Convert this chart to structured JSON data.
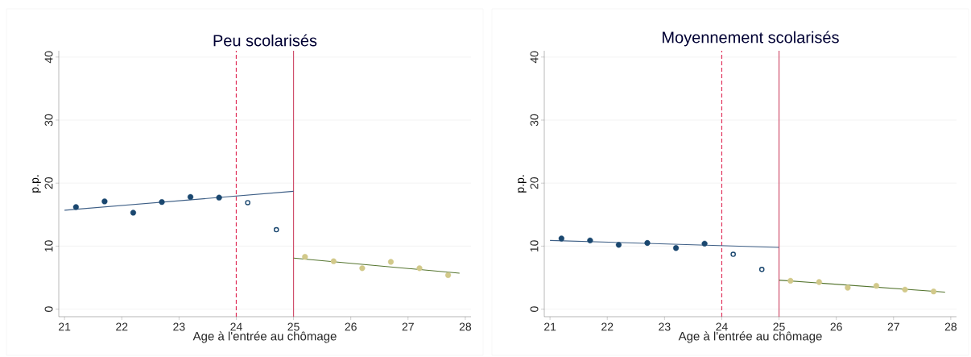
{
  "chart_data": [
    {
      "type": "scatter",
      "marker": "circle",
      "title": "Peu scolarisés",
      "xlabel": "Age à l'entrée au chômage",
      "ylabel": "p.p.",
      "xlim": [
        20.9,
        28.1
      ],
      "ylim": [
        -1.2,
        41
      ],
      "xticks": [
        21,
        22,
        23,
        24,
        25,
        26,
        27,
        28
      ],
      "yticks": [
        0,
        10,
        20,
        30,
        40
      ],
      "grid": "y",
      "series": [
        {
          "color": "#1a476f",
          "x": [
            21.2,
            21.7,
            22.2,
            22.7,
            23.2,
            23.7
          ],
          "values": [
            16.2,
            17.1,
            15.3,
            17.0,
            17.8,
            17.7
          ]
        },
        {
          "color": "#1a476f",
          "x": [
            24.2,
            24.7
          ],
          "values": [
            16.9,
            12.6
          ]
        },
        {
          "color": "#d2c98a",
          "x": [
            25.2,
            25.7,
            26.2,
            26.7,
            27.2,
            27.7
          ],
          "values": [
            8.3,
            7.6,
            6.5,
            7.5,
            6.5,
            5.4
          ]
        },
        {
          "type": "line",
          "marker": "none",
          "color": "#3e5f86",
          "x": [
            21,
            25
          ],
          "values": [
            15.7,
            18.7
          ]
        },
        {
          "type": "line",
          "marker": "none",
          "color": "#55752f",
          "x": [
            25,
            27.9
          ],
          "values": [
            8.1,
            5.7
          ]
        }
      ],
      "ref_lines": [
        {
          "axis": "x",
          "value": 24,
          "color": "#e0305a",
          "line_style": "dashed"
        },
        {
          "axis": "x",
          "value": 25,
          "color": "#d0506d",
          "line_style": "solid"
        }
      ]
    },
    {
      "type": "scatter",
      "marker": "circle",
      "title": "Moyennement scolarisés",
      "xlabel": "Age à l'entrée au chômage",
      "ylabel": "p.p.",
      "xlim": [
        20.9,
        28.1
      ],
      "ylim": [
        -1.2,
        41
      ],
      "xticks": [
        21,
        22,
        23,
        24,
        25,
        26,
        27,
        28
      ],
      "yticks": [
        0,
        10,
        20,
        30,
        40
      ],
      "grid": "y",
      "series": [
        {
          "color": "#1a476f",
          "x": [
            21.2,
            21.7,
            22.2,
            22.7,
            23.2,
            23.7
          ],
          "values": [
            11.2,
            10.9,
            10.2,
            10.5,
            9.7,
            10.4
          ]
        },
        {
          "color": "#1a476f",
          "x": [
            24.2,
            24.7
          ],
          "values": [
            8.7,
            6.3
          ]
        },
        {
          "color": "#d2c98a",
          "x": [
            25.2,
            25.7,
            26.2,
            26.7,
            27.2,
            27.7
          ],
          "values": [
            4.5,
            4.3,
            3.4,
            3.7,
            3.1,
            2.8
          ]
        },
        {
          "type": "line",
          "marker": "none",
          "color": "#3e5f86",
          "x": [
            21,
            25
          ],
          "values": [
            10.9,
            9.8
          ]
        },
        {
          "type": "line",
          "marker": "none",
          "color": "#55752f",
          "x": [
            25,
            27.9
          ],
          "values": [
            4.6,
            2.7
          ]
        }
      ],
      "ref_lines": [
        {
          "axis": "x",
          "value": 24,
          "color": "#e0305a",
          "line_style": "dashed"
        },
        {
          "axis": "x",
          "value": 25,
          "color": "#d0506d",
          "line_style": "solid"
        }
      ]
    }
  ]
}
